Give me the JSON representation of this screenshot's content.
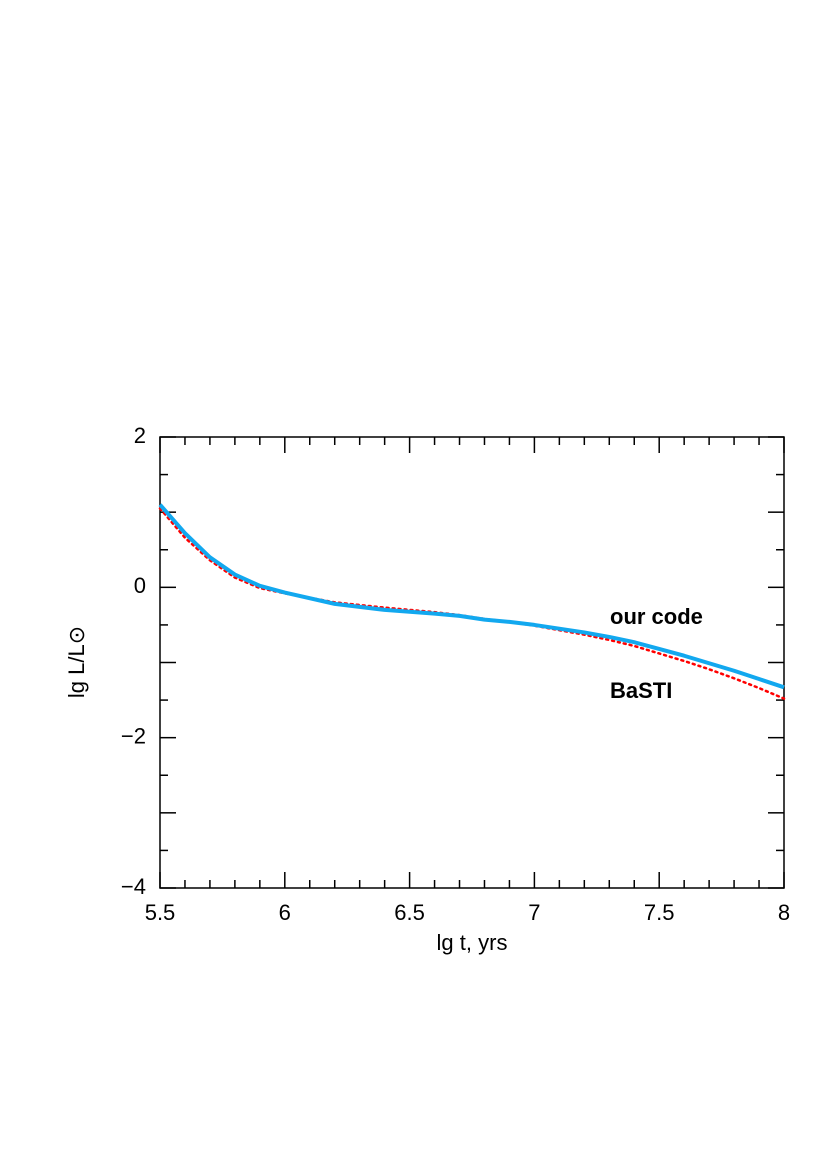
{
  "chart_data": {
    "type": "line",
    "x_label": "lg t, yrs",
    "y_label": "lg L/L⊙",
    "x": [
      5.5,
      5.6,
      5.7,
      5.8,
      5.9,
      6.0,
      6.2,
      6.4,
      6.6,
      6.7,
      6.8,
      6.9,
      7.0,
      7.1,
      7.2,
      7.3,
      7.4,
      7.5,
      7.6,
      7.7,
      7.8,
      7.9,
      8.0
    ],
    "series": [
      {
        "name": "our code",
        "color": "#12a8ef",
        "style": "solid",
        "values": [
          1.1,
          0.72,
          0.4,
          0.17,
          0.02,
          -0.07,
          -0.22,
          -0.3,
          -0.35,
          -0.38,
          -0.43,
          -0.46,
          -0.5,
          -0.55,
          -0.6,
          -0.66,
          -0.73,
          -0.82,
          -0.91,
          -1.01,
          -1.11,
          -1.22,
          -1.33
        ]
      },
      {
        "name": "BaSTI",
        "color": "#ff0000",
        "style": "dotted",
        "values": [
          1.05,
          0.66,
          0.36,
          0.13,
          -0.01,
          -0.08,
          -0.2,
          -0.27,
          -0.33,
          -0.37,
          -0.42,
          -0.46,
          -0.51,
          -0.57,
          -0.63,
          -0.7,
          -0.78,
          -0.88,
          -0.98,
          -1.09,
          -1.21,
          -1.34,
          -1.48
        ]
      }
    ],
    "xlim": [
      5.5,
      8
    ],
    "ylim": [
      -4,
      2
    ],
    "xticks": [
      5.5,
      6,
      6.5,
      7,
      7.5,
      8
    ],
    "yticks": [
      {
        "value": -4,
        "label": "−4"
      },
      {
        "value": -2,
        "label": "−2"
      },
      0,
      2
    ]
  }
}
